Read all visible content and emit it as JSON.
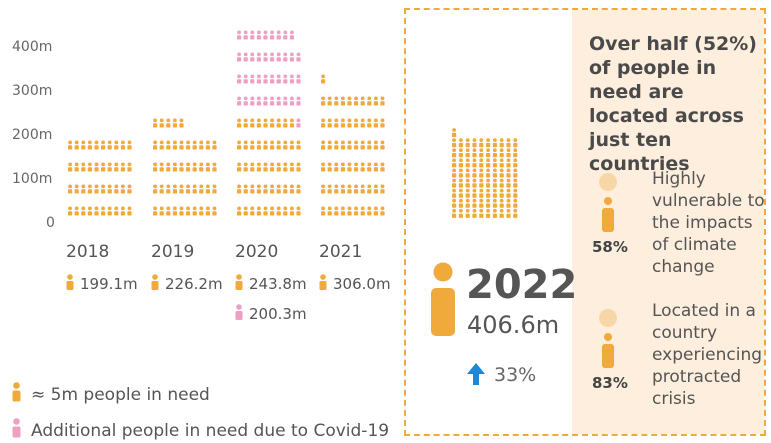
{
  "chart_data": {
    "type": "bar",
    "title": "",
    "xlabel": "",
    "ylabel": "",
    "ylim": [
      0,
      400
    ],
    "yticks": [
      "0",
      "100m",
      "200m",
      "300m",
      "400m"
    ],
    "unit_per_icon_millions": 5,
    "categories": [
      "2018",
      "2019",
      "2020",
      "2021",
      "2022"
    ],
    "series": [
      {
        "name": "≈ 5m people in need",
        "values": [
          199.1,
          226.2,
          243.8,
          306.0,
          406.6
        ]
      },
      {
        "name": "Additional people in need due to Covid-19",
        "values": [
          0,
          0,
          200.3,
          0,
          0
        ]
      }
    ],
    "value_labels": [
      "199.1m",
      "226.2m",
      "243.8m",
      "306.0m"
    ],
    "covid_label": "200.3m",
    "colors": {
      "people": "#f0a93b",
      "covid": "#ef9fc3",
      "arrow": "#1e88d6"
    }
  },
  "legend": {
    "people": "≈ 5m people in need",
    "covid": "Additional people in need due to Covid-19"
  },
  "highlight": {
    "year": "2022",
    "value": "406.6m",
    "change": "33%"
  },
  "panel": {
    "headline": "Over half (52%) of people in need are located across just ten countries",
    "stats": [
      {
        "pct": "58%",
        "text": "Highly vulnerable to the impacts of climate change"
      },
      {
        "pct": "83%",
        "text": "Located in a country experiencing protracted crisis"
      }
    ]
  }
}
